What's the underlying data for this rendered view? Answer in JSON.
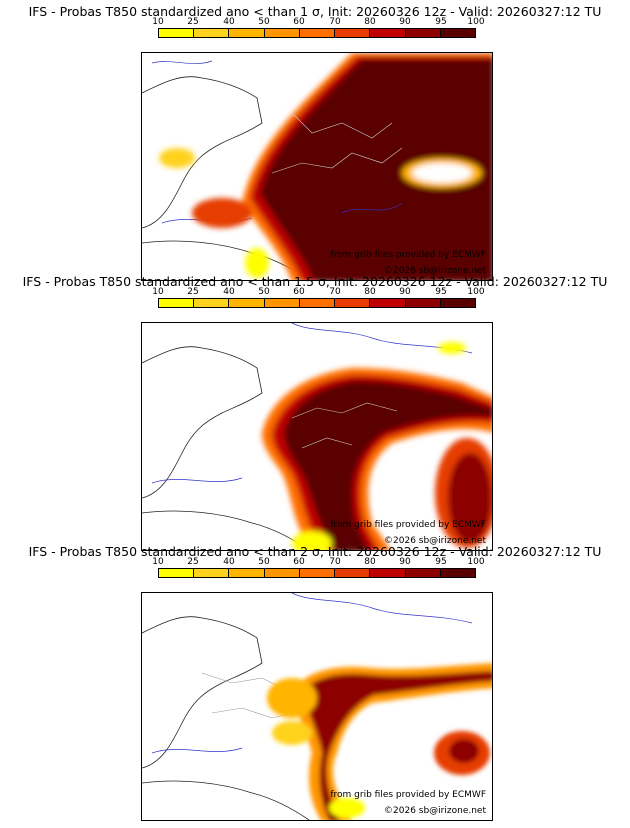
{
  "palette": [
    "#ffff00",
    "#ffd21e",
    "#ffb400",
    "#ff9600",
    "#ff6e00",
    "#e63c00",
    "#be0000",
    "#8c0000",
    "#5a0000"
  ],
  "ticks": [
    "10",
    "25",
    "40",
    "50",
    "60",
    "70",
    "80",
    "90",
    "95",
    "100"
  ],
  "panels": [
    {
      "title": "IFS - Probas T850  standardized ano < than 1 σ, Init: 20260326 12z - Valid: 20260327:12 TU",
      "credit_source": "from grib files provided by ECMWF",
      "credit_copyright": "©2026 sb@irizone.net"
    },
    {
      "title": "IFS - Probas T850  standardized ano < than 1.5 σ, Init: 20260326 12z - Valid: 20260327:12 TU",
      "credit_source": "from grib files provided by ECMWF",
      "credit_copyright": "©2026 sb@irizone.net"
    },
    {
      "title": "IFS - Probas T850  standardized ano < than 2 σ, Init: 20260326 12z - Valid: 20260327:12 TU",
      "credit_source": "from grib files provided by ECMWF",
      "credit_copyright": "©2026 sb@irizone.net"
    }
  ]
}
